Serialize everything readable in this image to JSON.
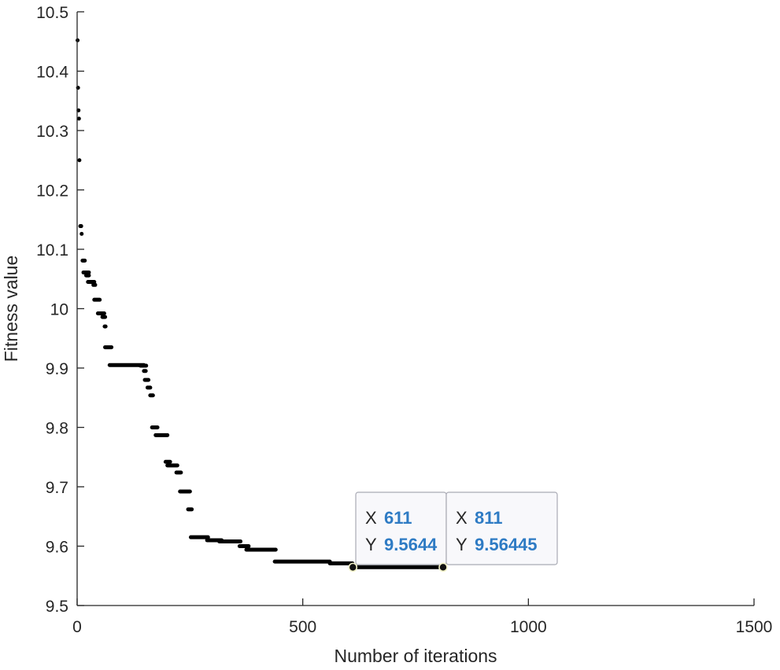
{
  "chart_data": {
    "type": "scatter",
    "xlabel": "Number of iterations",
    "ylabel": "Fitness value",
    "xlim": [
      0,
      1500
    ],
    "ylim": [
      9.5,
      10.5
    ],
    "xticks": [
      "0",
      "500",
      "1000",
      "1500"
    ],
    "yticks": [
      "9.5",
      "9.6",
      "9.7",
      "9.8",
      "9.9",
      "10",
      "10.1",
      "10.2",
      "10.3",
      "10.4",
      "10.5"
    ],
    "grid": false,
    "marker_color": "#000000",
    "segments": [
      {
        "x": [
          1,
          1
        ],
        "y": 10.452
      },
      {
        "x": [
          2,
          2
        ],
        "y": 10.372
      },
      {
        "x": [
          3,
          3
        ],
        "y": 10.334
      },
      {
        "x": [
          4,
          4
        ],
        "y": 10.32
      },
      {
        "x": [
          5,
          5
        ],
        "y": 10.25
      },
      {
        "x": [
          7,
          9
        ],
        "y": 10.139
      },
      {
        "x": [
          10,
          10
        ],
        "y": 10.126
      },
      {
        "x": [
          12,
          17
        ],
        "y": 10.081
      },
      {
        "x": [
          14,
          26
        ],
        "y": 10.061
      },
      {
        "x": [
          20,
          26
        ],
        "y": 10.056
      },
      {
        "x": [
          24,
          38
        ],
        "y": 10.045
      },
      {
        "x": [
          36,
          40
        ],
        "y": 10.04
      },
      {
        "x": [
          38,
          50
        ],
        "y": 10.015
      },
      {
        "x": [
          46,
          60
        ],
        "y": 9.992
      },
      {
        "x": [
          56,
          62
        ],
        "y": 9.986
      },
      {
        "x": [
          61,
          63
        ],
        "y": 9.97
      },
      {
        "x": [
          62,
          76
        ],
        "y": 9.935
      },
      {
        "x": [
          72,
          148
        ],
        "y": 9.905
      },
      {
        "x": [
          140,
          153
        ],
        "y": 9.904
      },
      {
        "x": [
          148,
          152
        ],
        "y": 9.895
      },
      {
        "x": [
          150,
          158
        ],
        "y": 9.88
      },
      {
        "x": [
          156,
          162
        ],
        "y": 9.867
      },
      {
        "x": [
          162,
          168
        ],
        "y": 9.854
      },
      {
        "x": [
          166,
          178
        ],
        "y": 9.8
      },
      {
        "x": [
          174,
          200
        ],
        "y": 9.787
      },
      {
        "x": [
          196,
          206
        ],
        "y": 9.742
      },
      {
        "x": [
          200,
          222
        ],
        "y": 9.736
      },
      {
        "x": [
          220,
          230
        ],
        "y": 9.724
      },
      {
        "x": [
          228,
          250
        ],
        "y": 9.692
      },
      {
        "x": [
          246,
          254
        ],
        "y": 9.662
      },
      {
        "x": [
          252,
          290
        ],
        "y": 9.615
      },
      {
        "x": [
          288,
          320
        ],
        "y": 9.61
      },
      {
        "x": [
          315,
          362
        ],
        "y": 9.608
      },
      {
        "x": [
          360,
          380
        ],
        "y": 9.6
      },
      {
        "x": [
          375,
          440
        ],
        "y": 9.594
      },
      {
        "x": [
          438,
          560
        ],
        "y": 9.574
      },
      {
        "x": [
          560,
          610
        ],
        "y": 9.571
      },
      {
        "x": [
          606,
          811
        ],
        "y": 9.5645
      }
    ],
    "datatips": [
      {
        "x": 611,
        "y": 9.5644,
        "x_text": "611",
        "y_text": "9.5644"
      },
      {
        "x": 811,
        "y": 9.56445,
        "x_text": "811",
        "y_text": "9.56445"
      }
    ],
    "datatip_style": {
      "key_x": "X",
      "key_y": "Y",
      "value_color": "#2e7bc4",
      "background": "#f8f8fb",
      "border": "#a9aab4"
    }
  }
}
